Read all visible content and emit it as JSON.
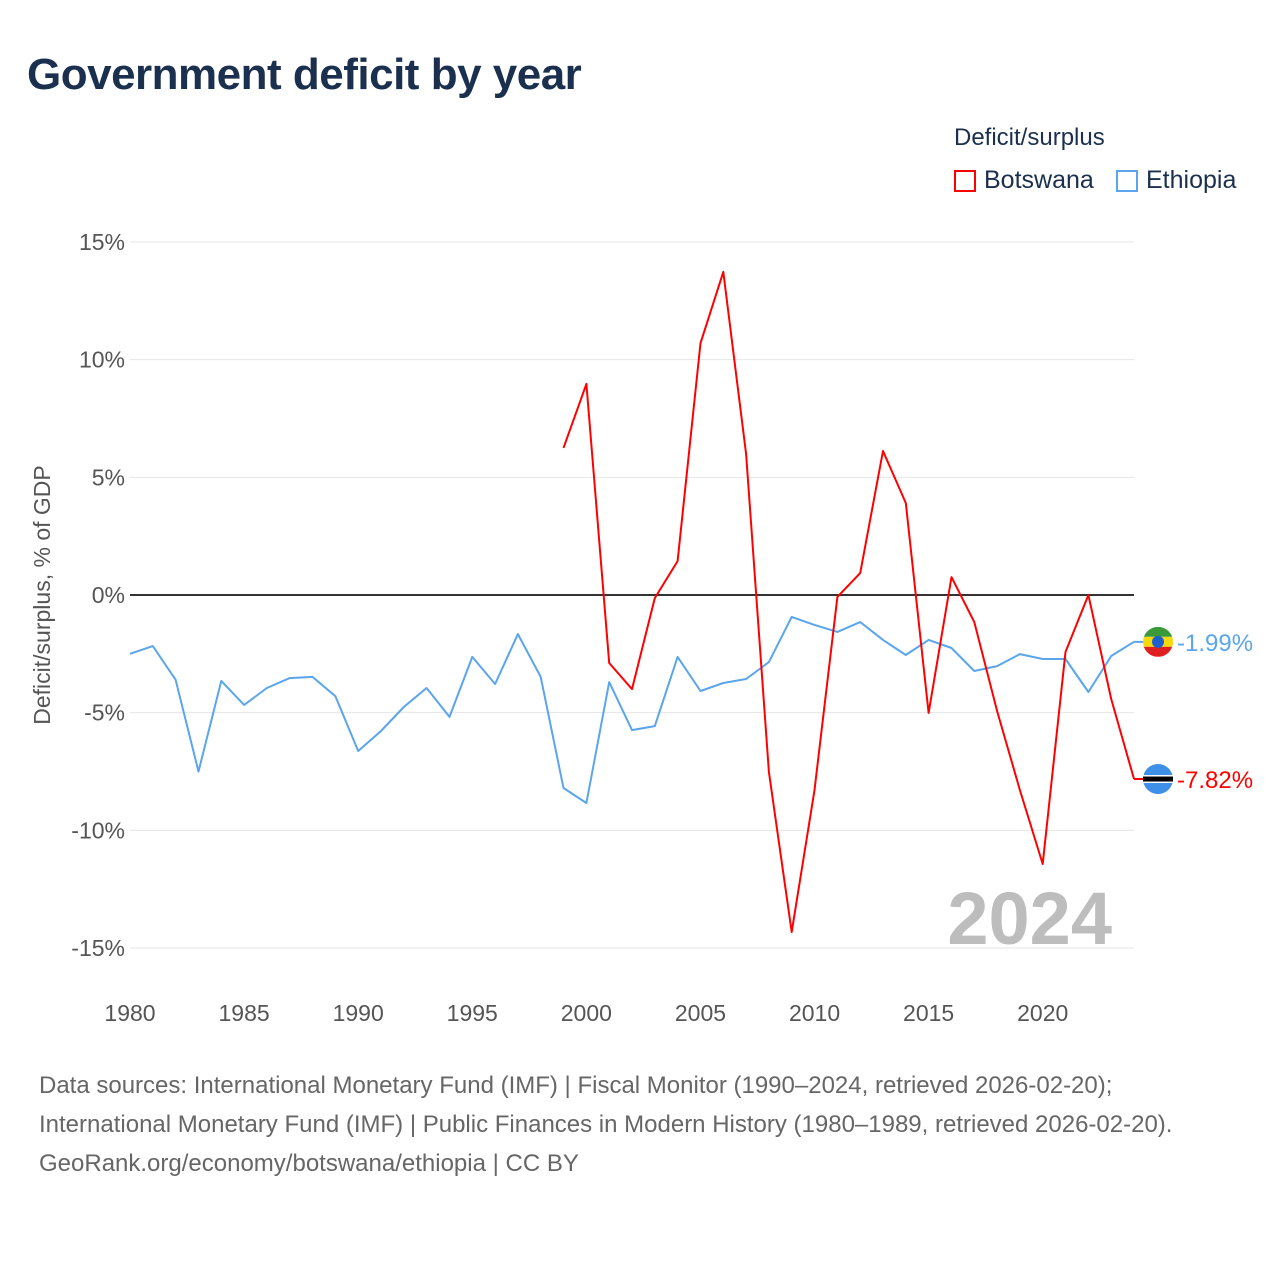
{
  "title": "Government deficit by year",
  "legend": {
    "title": "Deficit/surplus",
    "items": [
      "Botswana",
      "Ethiopia"
    ]
  },
  "footer": {
    "line1": "Data sources: International Monetary Fund (IMF) | Fiscal Monitor (1990–2024, retrieved 2026-02-20); International Monetary Fund (IMF) | Public Finances in Modern History (1980–1989, retrieved 2026-02-20).",
    "line2": "GeoRank.org/economy/botswana/ethiopia | CC BY"
  },
  "chart_data": {
    "type": "line",
    "title": "Government deficit by year",
    "xlabel": "",
    "ylabel": "Deficit/surplus, % of GDP",
    "xlim": [
      1980,
      2024
    ],
    "ylim": [
      -15,
      15
    ],
    "x_ticks": [
      1980,
      1985,
      1990,
      1995,
      2000,
      2005,
      2010,
      2015,
      2020
    ],
    "y_ticks": [
      15,
      10,
      5,
      0,
      -5,
      -10,
      -15
    ],
    "y_tick_labels": [
      "15%",
      "10%",
      "5%",
      "0%",
      "-5%",
      "-10%",
      "-15%"
    ],
    "watermark": "2024",
    "legend_placement": "top-right",
    "series": [
      {
        "name": "Botswana",
        "color": "#ff0000",
        "end_label": "-7.82%",
        "x": [
          1999,
          2000,
          2001,
          2002,
          2003,
          2004,
          2005,
          2006,
          2007,
          2008,
          2009,
          2010,
          2011,
          2012,
          2013,
          2014,
          2015,
          2016,
          2017,
          2018,
          2019,
          2020,
          2021,
          2022,
          2023,
          2024
        ],
        "values": [
          6.25,
          8.97,
          -2.89,
          -4.0,
          -0.13,
          1.44,
          10.7,
          13.73,
          5.99,
          -7.52,
          -14.32,
          -8.29,
          -0.08,
          0.93,
          6.12,
          3.91,
          -5.01,
          0.76,
          -1.15,
          -4.93,
          -8.29,
          -11.43,
          -2.42,
          0.0,
          -4.42,
          -7.82
        ]
      },
      {
        "name": "Ethiopia",
        "color": "#5aa5ec",
        "end_label": "-1.99%",
        "x": [
          1980,
          1981,
          1982,
          1983,
          1984,
          1985,
          1986,
          1987,
          1988,
          1989,
          1990,
          1991,
          1992,
          1993,
          1994,
          1995,
          1996,
          1997,
          1998,
          1999,
          2000,
          2001,
          2002,
          2003,
          2004,
          2005,
          2006,
          2007,
          2008,
          2009,
          2010,
          2011,
          2012,
          2013,
          2014,
          2015,
          2016,
          2017,
          2018,
          2019,
          2020,
          2021,
          2022,
          2023,
          2024
        ],
        "values": [
          -2.5,
          -2.17,
          -3.6,
          -7.5,
          -3.65,
          -4.67,
          -3.95,
          -3.53,
          -3.48,
          -4.3,
          -6.63,
          -5.78,
          -4.76,
          -3.95,
          -5.18,
          -2.63,
          -3.78,
          -1.66,
          -3.48,
          -8.2,
          -8.84,
          -3.7,
          -5.74,
          -5.57,
          -2.63,
          -4.08,
          -3.74,
          -3.57,
          -2.85,
          -0.93,
          -1.27,
          -1.57,
          -1.15,
          -1.91,
          -2.55,
          -1.91,
          -2.25,
          -3.23,
          -3.02,
          -2.51,
          -2.72,
          -2.72,
          -4.12,
          -2.59,
          -1.99
        ]
      }
    ]
  }
}
